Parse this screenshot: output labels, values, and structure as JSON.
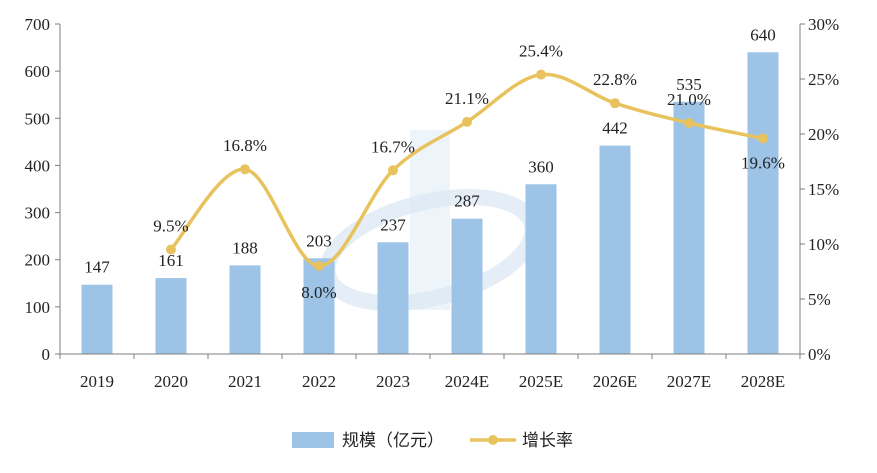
{
  "chart_data": {
    "type": "bar",
    "categories": [
      "2019",
      "2020",
      "2021",
      "2022",
      "2023",
      "2024E",
      "2025E",
      "2026E",
      "2027E",
      "2028E"
    ],
    "series": [
      {
        "name": "规模（亿元）",
        "type": "bar",
        "axis": "left",
        "color": "#9dc3e6",
        "values": [
          147,
          161,
          188,
          203,
          237,
          287,
          360,
          442,
          535,
          640
        ],
        "labels": [
          "147",
          "161",
          "188",
          "203",
          "237",
          "287",
          "360",
          "442",
          "535",
          "640"
        ]
      },
      {
        "name": "增长率",
        "type": "line",
        "axis": "right",
        "color": "#e8c35d",
        "values": [
          null,
          9.5,
          16.8,
          8.0,
          16.7,
          21.1,
          25.4,
          22.8,
          21.0,
          19.6
        ],
        "labels": [
          "",
          "9.5%",
          "16.8%",
          "8.0%",
          "16.7%",
          "21.1%",
          "25.4%",
          "22.8%",
          "21.0%",
          "19.6%"
        ]
      }
    ],
    "y_left": {
      "min": 0,
      "max": 700,
      "step": 100,
      "ticks": [
        "0",
        "100",
        "200",
        "300",
        "400",
        "500",
        "600",
        "700"
      ]
    },
    "y_right": {
      "min": 0,
      "max": 30,
      "step": 5,
      "ticks": [
        "0%",
        "5%",
        "10%",
        "15%",
        "20%",
        "25%",
        "30%"
      ]
    },
    "grid": false,
    "legend": "bottom-center",
    "title": "",
    "xlabel": "",
    "ylabel": ""
  }
}
